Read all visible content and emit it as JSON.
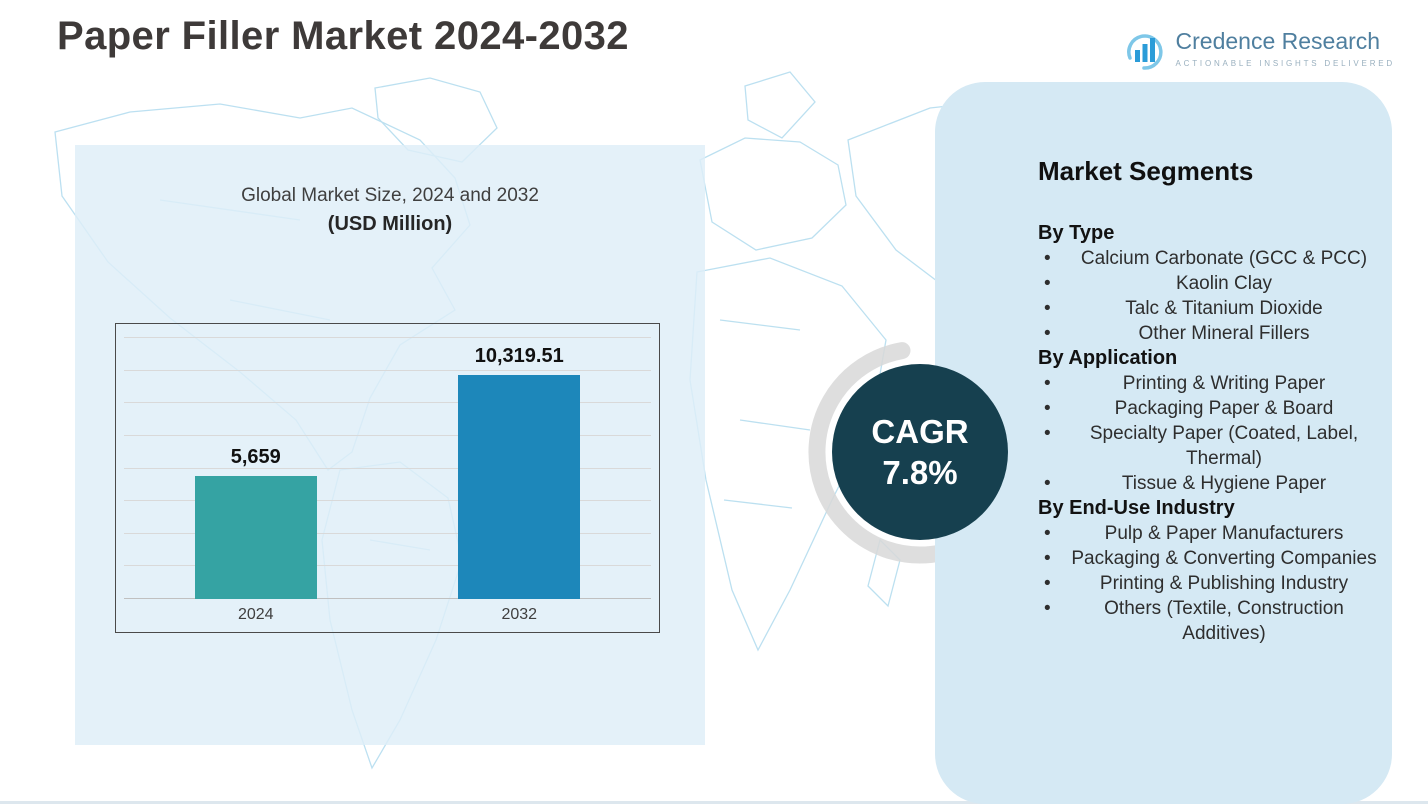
{
  "header": {
    "title": "Paper Filler Market 2024-2032"
  },
  "logo": {
    "name": "Credence Research",
    "tagline": "Actionable Insights Delivered"
  },
  "chart_data": {
    "type": "bar",
    "title": "Global Market Size, 2024 and 2032",
    "subtitle": "(USD Million)",
    "categories": [
      "2024",
      "2032"
    ],
    "values": [
      5659,
      10319.51
    ],
    "value_labels": [
      "5,659",
      "10,319.51"
    ],
    "bar_colors": [
      "#35a3a3",
      "#1d87ba"
    ],
    "xlabel": "",
    "ylabel": "",
    "ylim": [
      0,
      12000
    ],
    "y_gridlines": 9,
    "grid": true,
    "legend": "none"
  },
  "cagr": {
    "label": "CAGR",
    "value": "7.8%"
  },
  "segments": {
    "title": "Market Segments",
    "groups": [
      {
        "heading": "By Type",
        "items": [
          "Calcium Carbonate (GCC & PCC)",
          "Kaolin Clay",
          "Talc & Titanium Dioxide",
          "Other Mineral Fillers"
        ]
      },
      {
        "heading": "By Application",
        "items": [
          "Printing & Writing Paper",
          "Packaging Paper & Board",
          "Specialty Paper (Coated, Label, Thermal)",
          "Tissue & Hygiene Paper"
        ]
      },
      {
        "heading": "By End-Use Industry",
        "items": [
          "Pulp & Paper Manufacturers",
          "Packaging & Converting Companies",
          "Printing & Publishing Industry",
          "Others (Textile, Construction Additives)"
        ]
      }
    ]
  },
  "colors": {
    "bar_2024": "#35a3a3",
    "bar_2032": "#1d87ba",
    "cagr_circle": "#16404f",
    "left_panel_bg": "#deeef8",
    "right_panel_bg": "#d5e9f4",
    "map_stroke": "#b5ddef",
    "title_text": "#3e3a39",
    "logo_text": "#4f7f9f"
  }
}
